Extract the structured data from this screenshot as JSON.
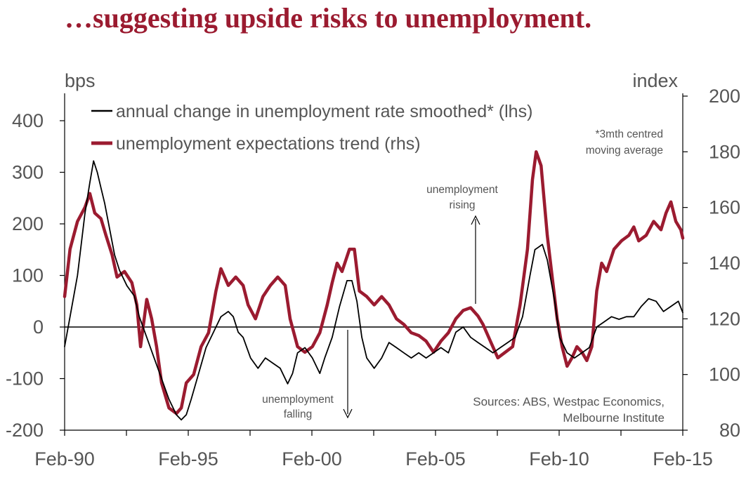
{
  "title": "…suggesting upside risks to unemployment.",
  "chart_data": {
    "type": "line",
    "left_axis": {
      "unit": "bps",
      "min": -200,
      "max": 450,
      "ticks": [
        -200,
        -100,
        0,
        100,
        200,
        300,
        400
      ]
    },
    "right_axis": {
      "unit": "index",
      "min": 80,
      "max": 201,
      "ticks": [
        80,
        100,
        120,
        140,
        160,
        180,
        200
      ]
    },
    "x_axis": {
      "start": 1990.08,
      "end": 2015.08,
      "ticks": [
        "Feb-90",
        "Feb-95",
        "Feb-00",
        "Feb-05",
        "Feb-10",
        "Feb-15"
      ]
    },
    "legend": [
      "annual change in unemployment rate smoothed* (lhs)",
      "unemployment expectations trend (rhs)"
    ],
    "footnote": [
      "*3mth centred",
      "moving average"
    ],
    "annotations": {
      "rising": [
        "unemployment",
        "rising"
      ],
      "falling": [
        "unemployment",
        "falling"
      ]
    },
    "sources": [
      "Sources: ABS, Westpac Economics,",
      "Melbourne Institute"
    ],
    "series": [
      {
        "name": "annual change in unemployment rate smoothed* (lhs)",
        "axis": "left",
        "color": "#000000",
        "points": [
          [
            1990.08,
            -38
          ],
          [
            1990.3,
            20
          ],
          [
            1990.6,
            100
          ],
          [
            1990.9,
            220
          ],
          [
            1991.1,
            280
          ],
          [
            1991.25,
            322
          ],
          [
            1991.4,
            300
          ],
          [
            1991.55,
            270
          ],
          [
            1991.7,
            240
          ],
          [
            1991.9,
            190
          ],
          [
            1992.1,
            140
          ],
          [
            1992.3,
            110
          ],
          [
            1992.6,
            80
          ],
          [
            1992.9,
            60
          ],
          [
            1993.1,
            20
          ],
          [
            1993.4,
            -20
          ],
          [
            1993.7,
            -60
          ],
          [
            1994.0,
            -100
          ],
          [
            1994.3,
            -140
          ],
          [
            1994.6,
            -170
          ],
          [
            1994.8,
            -180
          ],
          [
            1995.0,
            -170
          ],
          [
            1995.2,
            -140
          ],
          [
            1995.5,
            -90
          ],
          [
            1995.8,
            -40
          ],
          [
            1996.1,
            -10
          ],
          [
            1996.4,
            20
          ],
          [
            1996.7,
            30
          ],
          [
            1996.9,
            20
          ],
          [
            1997.1,
            -10
          ],
          [
            1997.3,
            -20
          ],
          [
            1997.6,
            -60
          ],
          [
            1997.9,
            -80
          ],
          [
            1998.2,
            -60
          ],
          [
            1998.5,
            -70
          ],
          [
            1998.8,
            -80
          ],
          [
            1999.1,
            -110
          ],
          [
            1999.3,
            -90
          ],
          [
            1999.5,
            -50
          ],
          [
            1999.8,
            -40
          ],
          [
            2000.1,
            -60
          ],
          [
            2000.4,
            -90
          ],
          [
            2000.6,
            -60
          ],
          [
            2000.9,
            -20
          ],
          [
            2001.2,
            40
          ],
          [
            2001.5,
            90
          ],
          [
            2001.7,
            90
          ],
          [
            2001.9,
            50
          ],
          [
            2002.1,
            -20
          ],
          [
            2002.3,
            -60
          ],
          [
            2002.6,
            -80
          ],
          [
            2002.9,
            -60
          ],
          [
            2003.2,
            -30
          ],
          [
            2003.5,
            -40
          ],
          [
            2003.8,
            -50
          ],
          [
            2004.1,
            -60
          ],
          [
            2004.4,
            -50
          ],
          [
            2004.7,
            -60
          ],
          [
            2005.0,
            -50
          ],
          [
            2005.3,
            -40
          ],
          [
            2005.6,
            -50
          ],
          [
            2005.9,
            -10
          ],
          [
            2006.2,
            0
          ],
          [
            2006.5,
            -20
          ],
          [
            2006.8,
            -30
          ],
          [
            2007.1,
            -40
          ],
          [
            2007.4,
            -50
          ],
          [
            2007.7,
            -40
          ],
          [
            2008.0,
            -30
          ],
          [
            2008.3,
            -20
          ],
          [
            2008.6,
            20
          ],
          [
            2008.9,
            100
          ],
          [
            2009.1,
            150
          ],
          [
            2009.4,
            160
          ],
          [
            2009.6,
            130
          ],
          [
            2009.9,
            50
          ],
          [
            2010.1,
            -20
          ],
          [
            2010.4,
            -50
          ],
          [
            2010.7,
            -60
          ],
          [
            2011.0,
            -50
          ],
          [
            2011.3,
            -40
          ],
          [
            2011.6,
            0
          ],
          [
            2011.9,
            10
          ],
          [
            2012.2,
            20
          ],
          [
            2012.5,
            15
          ],
          [
            2012.8,
            20
          ],
          [
            2013.1,
            20
          ],
          [
            2013.4,
            40
          ],
          [
            2013.7,
            55
          ],
          [
            2014.0,
            50
          ],
          [
            2014.3,
            30
          ],
          [
            2014.6,
            40
          ],
          [
            2014.9,
            50
          ],
          [
            2015.08,
            28
          ]
        ]
      },
      {
        "name": "unemployment expectations trend (rhs)",
        "axis": "right",
        "color": "#9b1b30",
        "points": [
          [
            1990.08,
            128
          ],
          [
            1990.3,
            145
          ],
          [
            1990.6,
            155
          ],
          [
            1990.9,
            160
          ],
          [
            1991.1,
            165
          ],
          [
            1991.3,
            158
          ],
          [
            1991.55,
            156
          ],
          [
            1991.75,
            150
          ],
          [
            1992.0,
            143
          ],
          [
            1992.2,
            135
          ],
          [
            1992.5,
            137
          ],
          [
            1992.8,
            133
          ],
          [
            1993.0,
            125
          ],
          [
            1993.15,
            110
          ],
          [
            1993.4,
            127
          ],
          [
            1993.6,
            120
          ],
          [
            1993.8,
            110
          ],
          [
            1994.0,
            97
          ],
          [
            1994.3,
            88
          ],
          [
            1994.6,
            86
          ],
          [
            1994.8,
            88
          ],
          [
            1995.0,
            97
          ],
          [
            1995.3,
            100
          ],
          [
            1995.6,
            110
          ],
          [
            1995.9,
            115
          ],
          [
            1996.2,
            130
          ],
          [
            1996.4,
            138
          ],
          [
            1996.7,
            132
          ],
          [
            1997.0,
            135
          ],
          [
            1997.3,
            132
          ],
          [
            1997.5,
            125
          ],
          [
            1997.8,
            120
          ],
          [
            1998.1,
            128
          ],
          [
            1998.4,
            132
          ],
          [
            1998.7,
            135
          ],
          [
            1999.0,
            132
          ],
          [
            1999.2,
            120
          ],
          [
            1999.5,
            110
          ],
          [
            1999.8,
            108
          ],
          [
            2000.1,
            110
          ],
          [
            2000.4,
            115
          ],
          [
            2000.7,
            125
          ],
          [
            2000.9,
            133
          ],
          [
            2001.1,
            140
          ],
          [
            2001.3,
            137
          ],
          [
            2001.6,
            145
          ],
          [
            2001.8,
            145
          ],
          [
            2002.0,
            130
          ],
          [
            2002.3,
            128
          ],
          [
            2002.6,
            125
          ],
          [
            2002.9,
            128
          ],
          [
            2003.2,
            125
          ],
          [
            2003.5,
            120
          ],
          [
            2003.8,
            118
          ],
          [
            2004.1,
            115
          ],
          [
            2004.4,
            114
          ],
          [
            2004.7,
            112
          ],
          [
            2005.0,
            108
          ],
          [
            2005.3,
            112
          ],
          [
            2005.6,
            115
          ],
          [
            2005.9,
            120
          ],
          [
            2006.2,
            123
          ],
          [
            2006.5,
            124
          ],
          [
            2006.8,
            121
          ],
          [
            2007.0,
            118
          ],
          [
            2007.3,
            112
          ],
          [
            2007.6,
            106
          ],
          [
            2007.9,
            108
          ],
          [
            2008.2,
            110
          ],
          [
            2008.5,
            125
          ],
          [
            2008.8,
            145
          ],
          [
            2009.0,
            170
          ],
          [
            2009.15,
            180
          ],
          [
            2009.35,
            175
          ],
          [
            2009.6,
            150
          ],
          [
            2009.8,
            135
          ],
          [
            2010.0,
            120
          ],
          [
            2010.2,
            110
          ],
          [
            2010.4,
            103
          ],
          [
            2010.6,
            106
          ],
          [
            2010.8,
            110
          ],
          [
            2011.0,
            108
          ],
          [
            2011.2,
            105
          ],
          [
            2011.4,
            110
          ],
          [
            2011.6,
            130
          ],
          [
            2011.8,
            140
          ],
          [
            2012.0,
            137
          ],
          [
            2012.3,
            145
          ],
          [
            2012.6,
            148
          ],
          [
            2012.9,
            150
          ],
          [
            2013.1,
            153
          ],
          [
            2013.3,
            148
          ],
          [
            2013.6,
            150
          ],
          [
            2013.9,
            155
          ],
          [
            2014.2,
            152
          ],
          [
            2014.4,
            158
          ],
          [
            2014.6,
            162
          ],
          [
            2014.8,
            155
          ],
          [
            2015.0,
            152
          ],
          [
            2015.08,
            149
          ]
        ]
      }
    ]
  }
}
